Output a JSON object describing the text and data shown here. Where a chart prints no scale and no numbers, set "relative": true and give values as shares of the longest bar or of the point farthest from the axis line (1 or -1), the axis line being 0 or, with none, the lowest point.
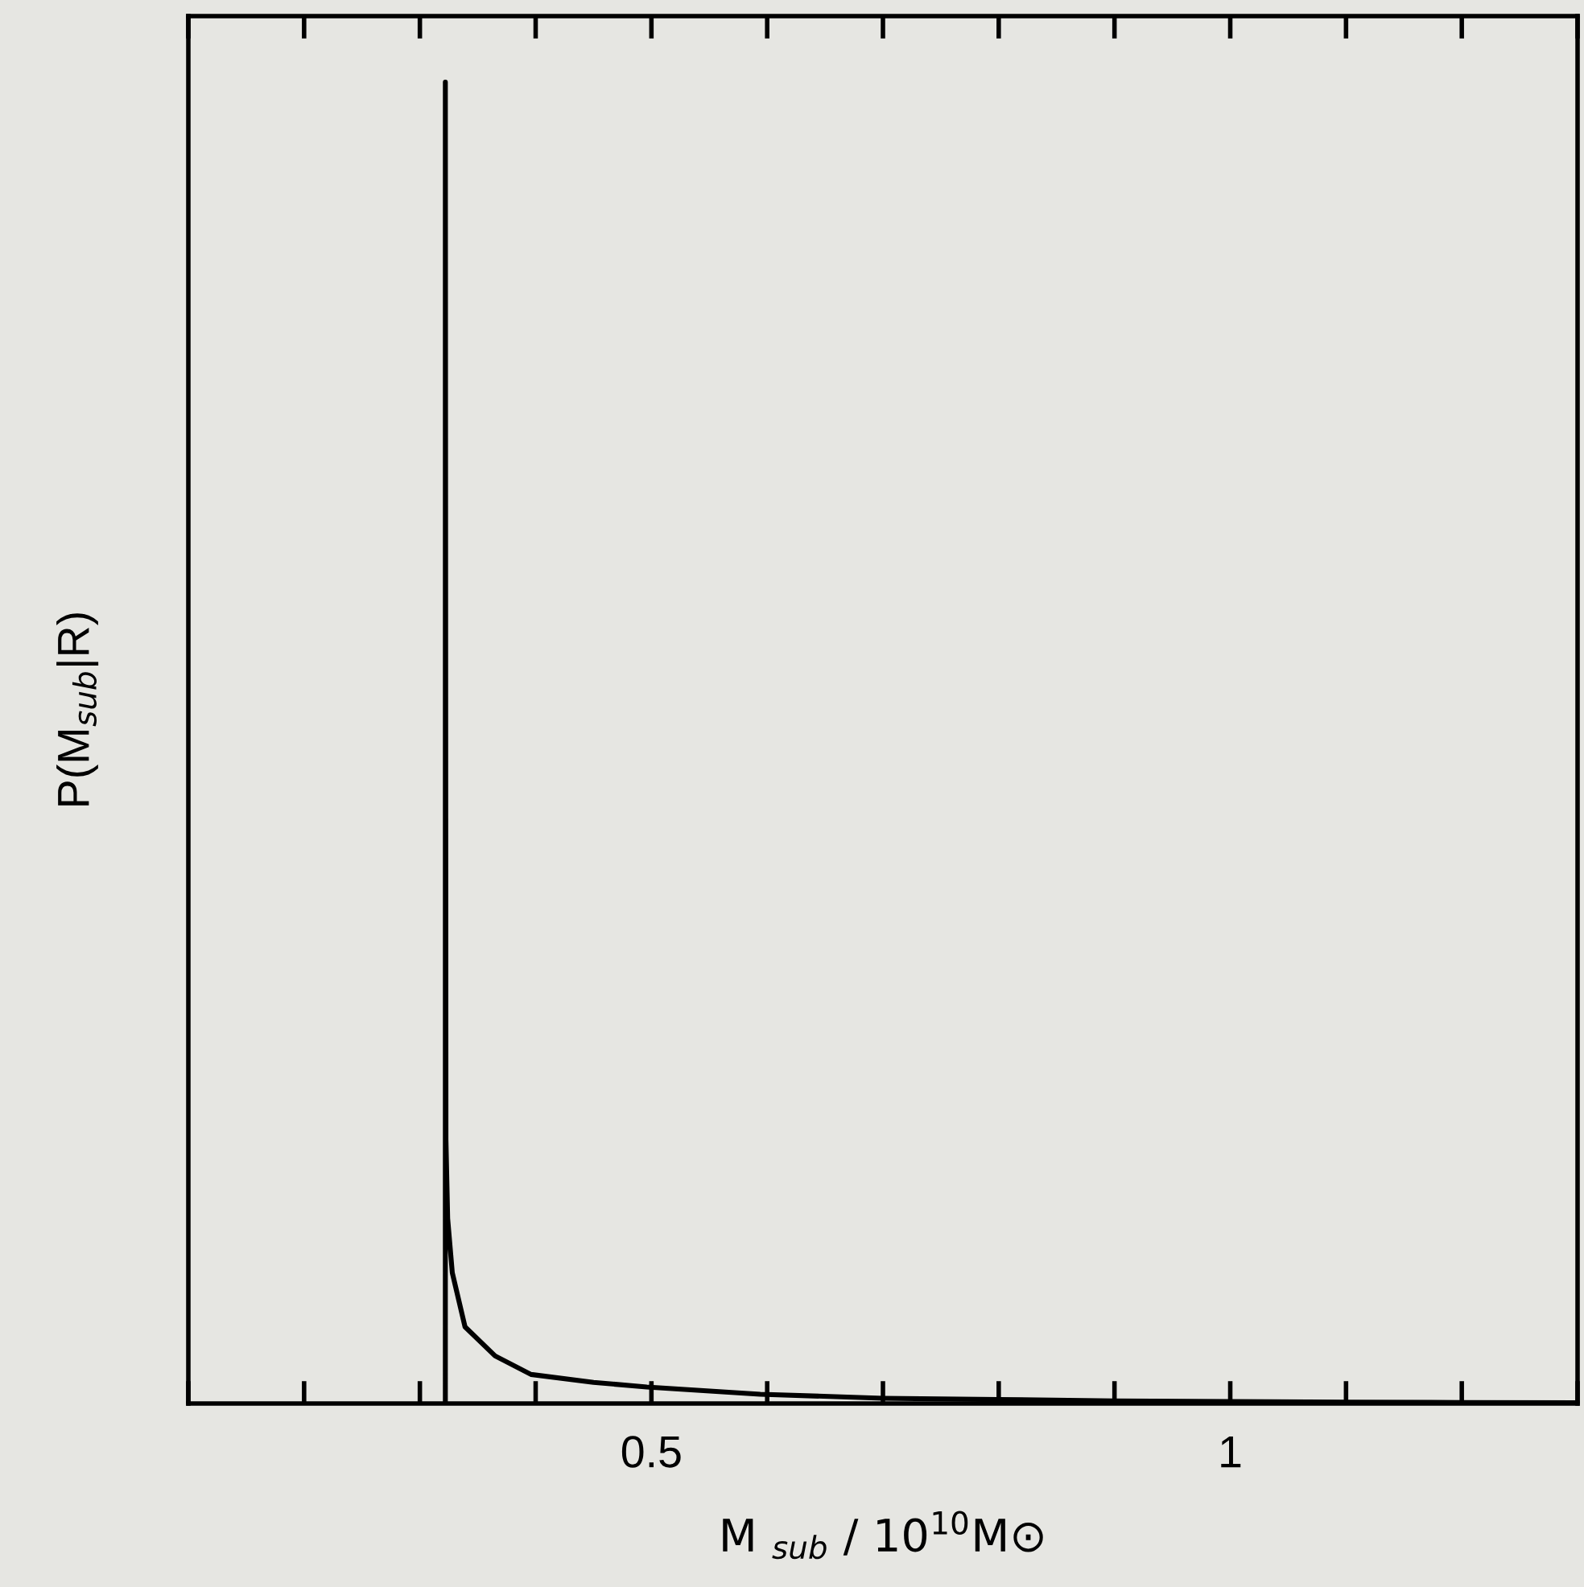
{
  "chart_data": {
    "type": "line",
    "xlabel": "M $_{sub}$ / 10$^{10}$M⊙",
    "ylabel": "P(M$_{sub}$|R)",
    "relative": true,
    "xlim": [
      0.1,
      1.3
    ],
    "xticks": [
      {
        "value": 0.1,
        "label": null
      },
      {
        "value": 0.2,
        "label": null
      },
      {
        "value": 0.3,
        "label": null
      },
      {
        "value": 0.4,
        "label": null
      },
      {
        "value": 0.5,
        "label": "0.5"
      },
      {
        "value": 0.6,
        "label": null
      },
      {
        "value": 0.7,
        "label": null
      },
      {
        "value": 0.8,
        "label": null
      },
      {
        "value": 0.9,
        "label": null
      },
      {
        "value": 1,
        "label": "1"
      },
      {
        "value": 1.1,
        "label": null
      },
      {
        "value": 1.2,
        "label": null
      },
      {
        "value": 1.3,
        "label": null
      }
    ],
    "tick_labels": "x",
    "grid": false,
    "legend": false,
    "series": [
      {
        "color": "#000000",
        "x": [
          0.322,
          0.322,
          0.3225,
          0.324,
          0.328,
          0.339,
          0.365,
          0.396,
          0.45,
          0.496,
          0.594,
          0.7,
          0.8,
          0.9,
          1.0,
          1.1,
          1.2,
          1.3
        ],
        "values": [
          0,
          1,
          0.2,
          0.14,
          0.099,
          0.058,
          0.036,
          0.022,
          0.016,
          0.0125,
          0.007,
          0.004,
          0.003,
          0.002,
          0.0015,
          0.001,
          0.0008,
          0.0006
        ]
      }
    ]
  }
}
